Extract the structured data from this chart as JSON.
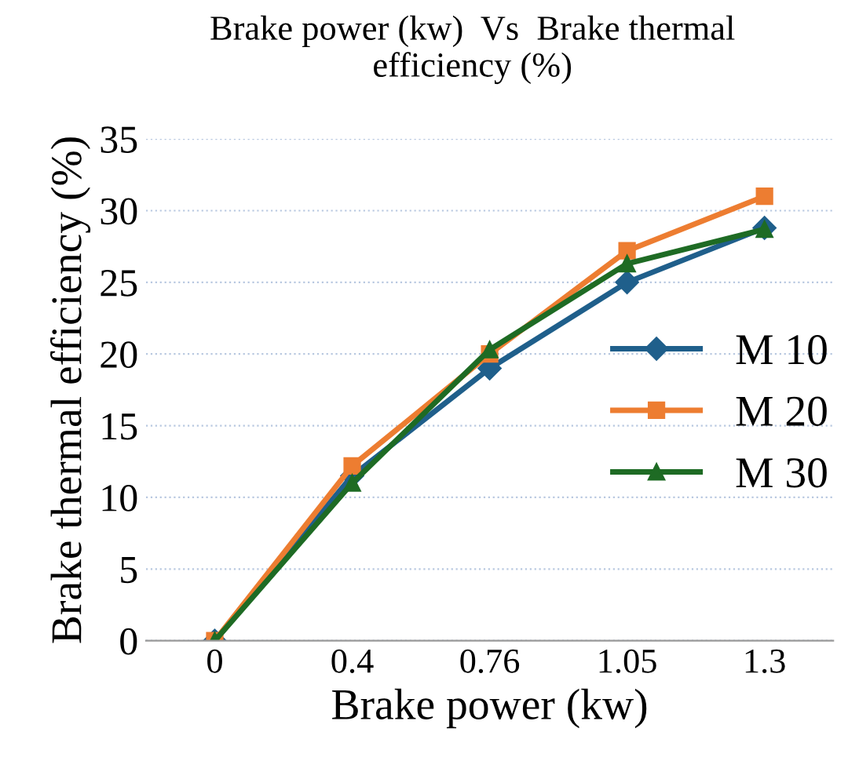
{
  "chart_data": {
    "type": "line",
    "title": "Brake power (kw)  Vs  Brake thermal efficiency (%)",
    "xlabel": "Brake power (kw)",
    "ylabel": "Brake thermal efficiency (%)",
    "categories": [
      "0",
      "0.4",
      "0.76",
      "1.05",
      "1.3"
    ],
    "series": [
      {
        "name": "M 10",
        "color": "#1f5f8b",
        "marker": "diamond",
        "values": [
          0,
          11.5,
          19,
          25,
          28.8
        ]
      },
      {
        "name": "M 20",
        "color": "#ed7d31",
        "marker": "square",
        "values": [
          0,
          12.2,
          20,
          27.2,
          31
        ]
      },
      {
        "name": "M 30",
        "color": "#1e6b24",
        "marker": "triangle",
        "values": [
          0,
          11,
          20.3,
          26.3,
          28.7
        ]
      }
    ],
    "ylim": [
      0,
      35
    ],
    "yticks": [
      0,
      5,
      10,
      15,
      20,
      25,
      30,
      35
    ],
    "grid": "y",
    "legend": "right"
  }
}
